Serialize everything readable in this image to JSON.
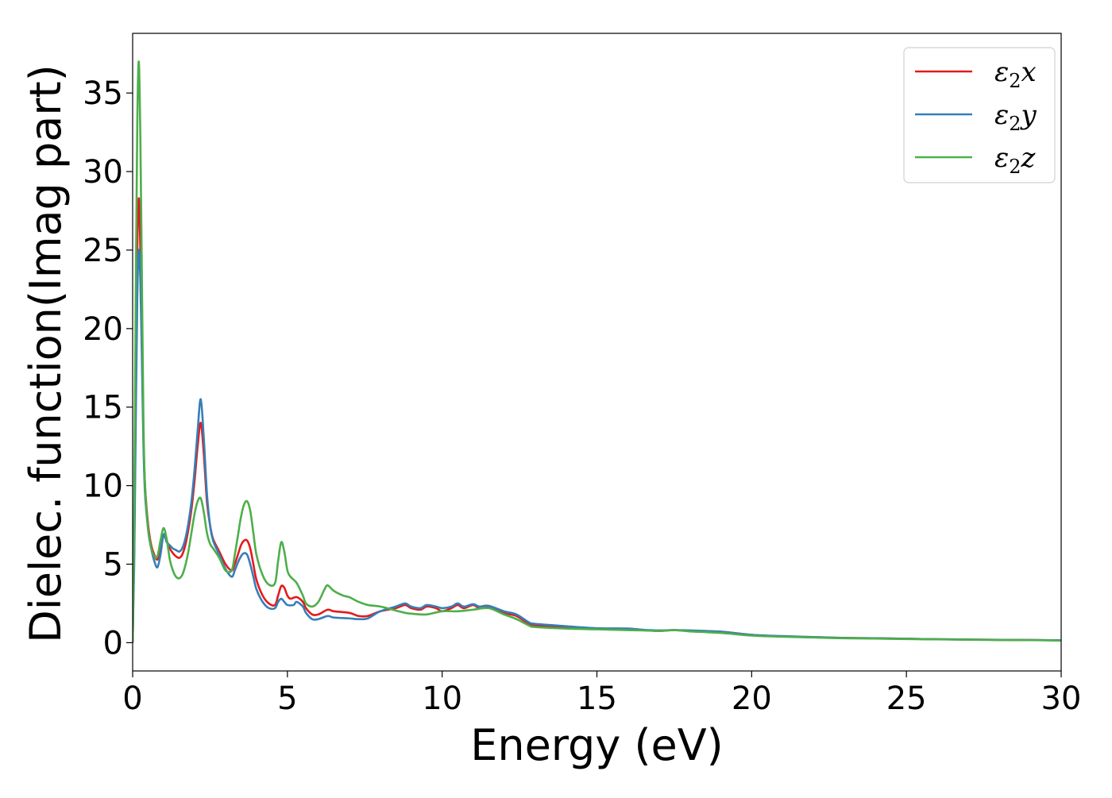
{
  "chart_data": {
    "type": "line",
    "xlabel": "Energy (eV)",
    "ylabel": "Dielec. function(Imag part)",
    "xlim": [
      0,
      30
    ],
    "ylim": [
      -1.8,
      38.8
    ],
    "x_ticks": [
      0,
      5,
      10,
      15,
      20,
      25,
      30
    ],
    "y_ticks": [
      0,
      5,
      10,
      15,
      20,
      25,
      30,
      35
    ],
    "grid": false,
    "legend_position": "top-right",
    "series": [
      {
        "name": "ε₂x",
        "legend": {
          "base": "ε",
          "sub": "2",
          "suffix": "x"
        },
        "color": "#e41a1c",
        "points": [
          [
            0,
            0
          ],
          [
            0.05,
            6
          ],
          [
            0.1,
            16
          ],
          [
            0.15,
            25
          ],
          [
            0.2,
            28.3
          ],
          [
            0.25,
            25
          ],
          [
            0.3,
            19
          ],
          [
            0.35,
            13
          ],
          [
            0.4,
            10
          ],
          [
            0.5,
            7.5
          ],
          [
            0.6,
            6.2
          ],
          [
            0.7,
            5.6
          ],
          [
            0.8,
            5.3
          ],
          [
            0.9,
            6.0
          ],
          [
            1.0,
            6.8
          ],
          [
            1.1,
            6.5
          ],
          [
            1.2,
            6.0
          ],
          [
            1.3,
            5.7
          ],
          [
            1.4,
            5.5
          ],
          [
            1.5,
            5.4
          ],
          [
            1.6,
            5.6
          ],
          [
            1.7,
            6.2
          ],
          [
            1.8,
            7.2
          ],
          [
            1.9,
            8.5
          ],
          [
            2.0,
            10.3
          ],
          [
            2.1,
            12.5
          ],
          [
            2.2,
            14.0
          ],
          [
            2.3,
            12.0
          ],
          [
            2.4,
            9.0
          ],
          [
            2.5,
            7.5
          ],
          [
            2.6,
            6.6
          ],
          [
            2.8,
            5.8
          ],
          [
            3.0,
            5.0
          ],
          [
            3.2,
            4.6
          ],
          [
            3.3,
            5.0
          ],
          [
            3.4,
            5.6
          ],
          [
            3.5,
            6.2
          ],
          [
            3.6,
            6.5
          ],
          [
            3.7,
            6.5
          ],
          [
            3.8,
            6.0
          ],
          [
            3.9,
            5.0
          ],
          [
            4.0,
            4.0
          ],
          [
            4.2,
            3.0
          ],
          [
            4.4,
            2.5
          ],
          [
            4.6,
            2.4
          ],
          [
            4.7,
            3.0
          ],
          [
            4.8,
            3.6
          ],
          [
            4.9,
            3.5
          ],
          [
            5.0,
            3.0
          ],
          [
            5.1,
            2.8
          ],
          [
            5.3,
            2.9
          ],
          [
            5.5,
            2.6
          ],
          [
            5.6,
            2.2
          ],
          [
            5.8,
            1.8
          ],
          [
            6.0,
            1.8
          ],
          [
            6.3,
            2.1
          ],
          [
            6.5,
            2.0
          ],
          [
            7.0,
            1.9
          ],
          [
            7.3,
            1.7
          ],
          [
            7.6,
            1.7
          ],
          [
            8.0,
            2.0
          ],
          [
            8.5,
            2.2
          ],
          [
            8.8,
            2.4
          ],
          [
            9.0,
            2.2
          ],
          [
            9.3,
            2.1
          ],
          [
            9.5,
            2.3
          ],
          [
            9.8,
            2.2
          ],
          [
            10.0,
            2.0
          ],
          [
            10.3,
            2.2
          ],
          [
            10.5,
            2.4
          ],
          [
            10.7,
            2.2
          ],
          [
            11.0,
            2.4
          ],
          [
            11.2,
            2.2
          ],
          [
            11.5,
            2.3
          ],
          [
            12.0,
            1.9
          ],
          [
            12.4,
            1.7
          ],
          [
            12.8,
            1.2
          ],
          [
            13.0,
            1.1
          ],
          [
            14.0,
            1.0
          ],
          [
            15.0,
            0.9
          ],
          [
            16.0,
            0.85
          ],
          [
            16.5,
            0.8
          ],
          [
            17.0,
            0.75
          ],
          [
            17.5,
            0.8
          ],
          [
            18.0,
            0.75
          ],
          [
            19.0,
            0.7
          ],
          [
            20.0,
            0.5
          ],
          [
            21.0,
            0.4
          ],
          [
            22.0,
            0.35
          ],
          [
            23.0,
            0.3
          ],
          [
            24.0,
            0.28
          ],
          [
            25.0,
            0.25
          ],
          [
            26.0,
            0.22
          ],
          [
            27.0,
            0.2
          ],
          [
            28.0,
            0.18
          ],
          [
            29.0,
            0.17
          ],
          [
            30.0,
            0.15
          ]
        ]
      },
      {
        "name": "ε₂y",
        "legend": {
          "base": "ε",
          "sub": "2",
          "suffix": "y"
        },
        "color": "#377eb8",
        "points": [
          [
            0,
            0
          ],
          [
            0.05,
            5
          ],
          [
            0.1,
            14
          ],
          [
            0.15,
            22
          ],
          [
            0.2,
            25.0
          ],
          [
            0.25,
            23
          ],
          [
            0.3,
            18
          ],
          [
            0.35,
            12.5
          ],
          [
            0.4,
            9.5
          ],
          [
            0.5,
            7.2
          ],
          [
            0.6,
            6.0
          ],
          [
            0.7,
            5.2
          ],
          [
            0.8,
            4.8
          ],
          [
            0.9,
            5.6
          ],
          [
            1.0,
            6.9
          ],
          [
            1.1,
            6.4
          ],
          [
            1.2,
            6.2
          ],
          [
            1.3,
            6.0
          ],
          [
            1.4,
            5.9
          ],
          [
            1.5,
            5.8
          ],
          [
            1.6,
            6.0
          ],
          [
            1.7,
            6.6
          ],
          [
            1.8,
            7.6
          ],
          [
            1.9,
            9.0
          ],
          [
            2.0,
            11.0
          ],
          [
            2.1,
            13.5
          ],
          [
            2.2,
            15.5
          ],
          [
            2.3,
            13.0
          ],
          [
            2.4,
            9.5
          ],
          [
            2.5,
            7.5
          ],
          [
            2.6,
            6.5
          ],
          [
            2.8,
            5.6
          ],
          [
            3.0,
            4.7
          ],
          [
            3.2,
            4.2
          ],
          [
            3.3,
            4.6
          ],
          [
            3.4,
            5.1
          ],
          [
            3.5,
            5.5
          ],
          [
            3.6,
            5.7
          ],
          [
            3.7,
            5.6
          ],
          [
            3.8,
            5.0
          ],
          [
            3.9,
            4.2
          ],
          [
            4.0,
            3.4
          ],
          [
            4.2,
            2.6
          ],
          [
            4.4,
            2.2
          ],
          [
            4.6,
            2.2
          ],
          [
            4.7,
            2.6
          ],
          [
            4.8,
            2.8
          ],
          [
            4.9,
            2.6
          ],
          [
            5.0,
            2.4
          ],
          [
            5.2,
            2.4
          ],
          [
            5.3,
            2.6
          ],
          [
            5.5,
            2.3
          ],
          [
            5.6,
            1.9
          ],
          [
            5.8,
            1.5
          ],
          [
            6.0,
            1.5
          ],
          [
            6.3,
            1.7
          ],
          [
            6.5,
            1.6
          ],
          [
            7.0,
            1.55
          ],
          [
            7.3,
            1.5
          ],
          [
            7.6,
            1.55
          ],
          [
            8.0,
            2.0
          ],
          [
            8.5,
            2.3
          ],
          [
            8.8,
            2.5
          ],
          [
            9.0,
            2.3
          ],
          [
            9.3,
            2.2
          ],
          [
            9.5,
            2.4
          ],
          [
            9.8,
            2.3
          ],
          [
            10.0,
            2.2
          ],
          [
            10.3,
            2.3
          ],
          [
            10.5,
            2.5
          ],
          [
            10.7,
            2.3
          ],
          [
            11.0,
            2.45
          ],
          [
            11.2,
            2.3
          ],
          [
            11.5,
            2.35
          ],
          [
            12.0,
            2.0
          ],
          [
            12.4,
            1.8
          ],
          [
            12.8,
            1.3
          ],
          [
            13.0,
            1.2
          ],
          [
            14.0,
            1.05
          ],
          [
            15.0,
            0.92
          ],
          [
            16.0,
            0.9
          ],
          [
            16.5,
            0.82
          ],
          [
            17.0,
            0.78
          ],
          [
            17.5,
            0.8
          ],
          [
            18.0,
            0.78
          ],
          [
            19.0,
            0.7
          ],
          [
            20.0,
            0.5
          ],
          [
            21.0,
            0.42
          ],
          [
            22.0,
            0.36
          ],
          [
            23.0,
            0.3
          ],
          [
            24.0,
            0.28
          ],
          [
            25.0,
            0.25
          ],
          [
            26.0,
            0.22
          ],
          [
            27.0,
            0.2
          ],
          [
            28.0,
            0.18
          ],
          [
            29.0,
            0.17
          ],
          [
            30.0,
            0.15
          ]
        ]
      },
      {
        "name": "ε₂z",
        "legend": {
          "base": "ε",
          "sub": "2",
          "suffix": "z"
        },
        "color": "#4daf4a",
        "points": [
          [
            0,
            0
          ],
          [
            0.05,
            8
          ],
          [
            0.1,
            22
          ],
          [
            0.15,
            33
          ],
          [
            0.2,
            37.0
          ],
          [
            0.25,
            32
          ],
          [
            0.3,
            23
          ],
          [
            0.35,
            14
          ],
          [
            0.4,
            10
          ],
          [
            0.5,
            7.2
          ],
          [
            0.6,
            6.0
          ],
          [
            0.7,
            5.5
          ],
          [
            0.8,
            5.5
          ],
          [
            0.9,
            6.5
          ],
          [
            1.0,
            7.3
          ],
          [
            1.1,
            6.6
          ],
          [
            1.2,
            5.3
          ],
          [
            1.3,
            4.6
          ],
          [
            1.4,
            4.2
          ],
          [
            1.5,
            4.1
          ],
          [
            1.6,
            4.3
          ],
          [
            1.7,
            4.9
          ],
          [
            1.8,
            5.8
          ],
          [
            1.9,
            7.0
          ],
          [
            2.0,
            8.2
          ],
          [
            2.1,
            9.0
          ],
          [
            2.2,
            9.2
          ],
          [
            2.3,
            8.3
          ],
          [
            2.4,
            7.0
          ],
          [
            2.5,
            6.3
          ],
          [
            2.6,
            6.0
          ],
          [
            2.8,
            5.4
          ],
          [
            3.0,
            4.6
          ],
          [
            3.2,
            4.6
          ],
          [
            3.3,
            5.6
          ],
          [
            3.4,
            6.8
          ],
          [
            3.5,
            8.0
          ],
          [
            3.6,
            8.8
          ],
          [
            3.7,
            9.0
          ],
          [
            3.8,
            8.4
          ],
          [
            3.9,
            7.0
          ],
          [
            4.0,
            5.6
          ],
          [
            4.2,
            4.3
          ],
          [
            4.4,
            3.7
          ],
          [
            4.6,
            3.8
          ],
          [
            4.7,
            5.2
          ],
          [
            4.8,
            6.4
          ],
          [
            4.9,
            5.8
          ],
          [
            5.0,
            4.6
          ],
          [
            5.1,
            4.2
          ],
          [
            5.3,
            3.8
          ],
          [
            5.5,
            3.0
          ],
          [
            5.6,
            2.5
          ],
          [
            5.8,
            2.3
          ],
          [
            6.0,
            2.6
          ],
          [
            6.2,
            3.4
          ],
          [
            6.3,
            3.65
          ],
          [
            6.5,
            3.3
          ],
          [
            6.8,
            3.0
          ],
          [
            7.0,
            2.9
          ],
          [
            7.3,
            2.6
          ],
          [
            7.6,
            2.4
          ],
          [
            8.0,
            2.3
          ],
          [
            8.5,
            2.05
          ],
          [
            8.8,
            1.9
          ],
          [
            9.0,
            1.85
          ],
          [
            9.5,
            1.8
          ],
          [
            10.0,
            2.0
          ],
          [
            10.5,
            2.0
          ],
          [
            11.0,
            2.1
          ],
          [
            11.5,
            2.2
          ],
          [
            12.0,
            1.8
          ],
          [
            12.4,
            1.5
          ],
          [
            12.8,
            1.1
          ],
          [
            13.0,
            1.0
          ],
          [
            14.0,
            0.9
          ],
          [
            15.0,
            0.85
          ],
          [
            16.0,
            0.8
          ],
          [
            16.5,
            0.78
          ],
          [
            17.0,
            0.75
          ],
          [
            17.5,
            0.8
          ],
          [
            18.0,
            0.72
          ],
          [
            19.0,
            0.62
          ],
          [
            20.0,
            0.45
          ],
          [
            21.0,
            0.38
          ],
          [
            22.0,
            0.33
          ],
          [
            23.0,
            0.28
          ],
          [
            24.0,
            0.26
          ],
          [
            25.0,
            0.23
          ],
          [
            26.0,
            0.21
          ],
          [
            27.0,
            0.19
          ],
          [
            28.0,
            0.17
          ],
          [
            29.0,
            0.16
          ],
          [
            30.0,
            0.14
          ]
        ]
      }
    ]
  }
}
